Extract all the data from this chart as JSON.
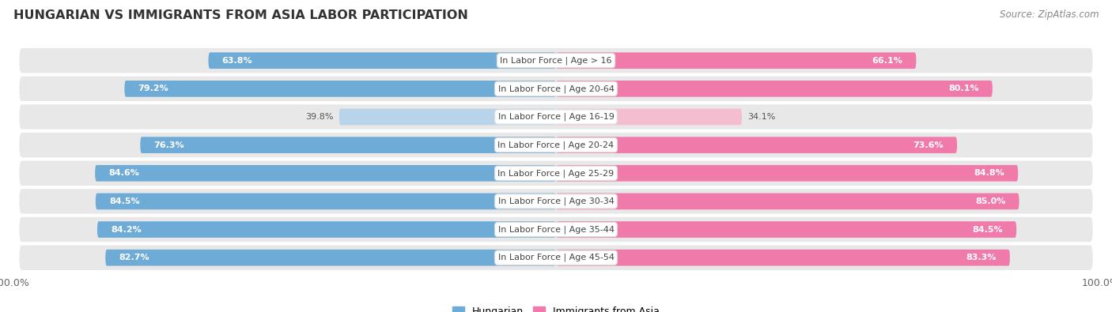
{
  "title": "HUNGARIAN VS IMMIGRANTS FROM ASIA LABOR PARTICIPATION",
  "source": "Source: ZipAtlas.com",
  "categories": [
    "In Labor Force | Age > 16",
    "In Labor Force | Age 20-64",
    "In Labor Force | Age 16-19",
    "In Labor Force | Age 20-24",
    "In Labor Force | Age 25-29",
    "In Labor Force | Age 30-34",
    "In Labor Force | Age 35-44",
    "In Labor Force | Age 45-54"
  ],
  "hungarian_values": [
    63.8,
    79.2,
    39.8,
    76.3,
    84.6,
    84.5,
    84.2,
    82.7
  ],
  "immigrant_values": [
    66.1,
    80.1,
    34.1,
    73.6,
    84.8,
    85.0,
    84.5,
    83.3
  ],
  "hungarian_color": "#6eabd6",
  "hungarian_light_color": "#b8d4ea",
  "immigrant_color": "#f07aaa",
  "immigrant_light_color": "#f5bdd0",
  "row_bg_color": "#e8e8e8",
  "max_value": 100.0,
  "legend_label_hungarian": "Hungarian",
  "legend_label_immigrant": "Immigrants from Asia",
  "background_color": "#ffffff",
  "title_fontsize": 11.5,
  "source_fontsize": 8.5,
  "bar_label_fontsize": 8,
  "cat_label_fontsize": 8
}
